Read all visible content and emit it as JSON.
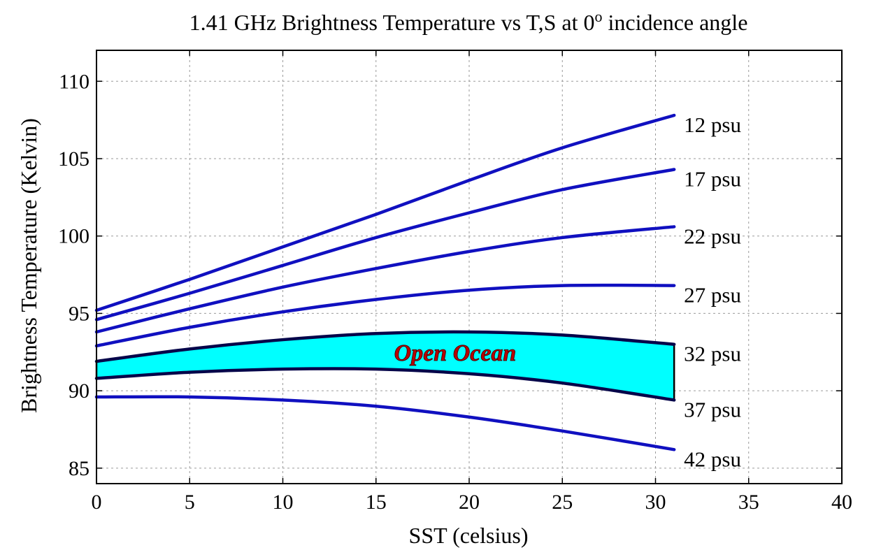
{
  "chart_data": {
    "type": "line",
    "title_main": "1.41 GHz Brightness Temperature vs T,S at 0",
    "title_sup": "o",
    "title_end": " incidence angle",
    "xlabel": "SST (celsius)",
    "ylabel": "Brightness Temperature (Kelvin)",
    "xlim": [
      0,
      40
    ],
    "ylim": [
      84,
      112
    ],
    "xticks": [
      0,
      5,
      10,
      15,
      20,
      25,
      30,
      35,
      40
    ],
    "yticks": [
      85,
      90,
      95,
      100,
      105,
      110
    ],
    "grid": true,
    "x": [
      0,
      5,
      10,
      15,
      20,
      25,
      31
    ],
    "series": [
      {
        "name": "12 psu",
        "values": [
          95.2,
          97.2,
          99.3,
          101.4,
          103.6,
          105.7,
          107.8
        ]
      },
      {
        "name": "17 psu",
        "values": [
          94.6,
          96.3,
          98.1,
          99.9,
          101.5,
          103.0,
          104.3
        ]
      },
      {
        "name": "22 psu",
        "values": [
          93.8,
          95.3,
          96.7,
          97.9,
          99.0,
          99.9,
          100.6
        ]
      },
      {
        "name": "27 psu",
        "values": [
          92.9,
          94.1,
          95.1,
          95.9,
          96.5,
          96.8,
          96.8
        ]
      },
      {
        "name": "32 psu",
        "values": [
          91.9,
          92.7,
          93.3,
          93.7,
          93.8,
          93.6,
          93.0
        ]
      },
      {
        "name": "37 psu",
        "values": [
          90.8,
          91.2,
          91.4,
          91.4,
          91.1,
          90.5,
          89.4
        ]
      },
      {
        "name": "42 psu",
        "values": [
          89.6,
          89.6,
          89.4,
          89.0,
          88.3,
          87.4,
          86.2
        ]
      }
    ],
    "shaded_region": {
      "label": "Open Ocean",
      "between": [
        "32 psu",
        "37 psu"
      ],
      "label_at": {
        "x": 20,
        "y": 92.5
      },
      "fill_color": "#00ffff"
    },
    "line_color": "#1010c0"
  }
}
